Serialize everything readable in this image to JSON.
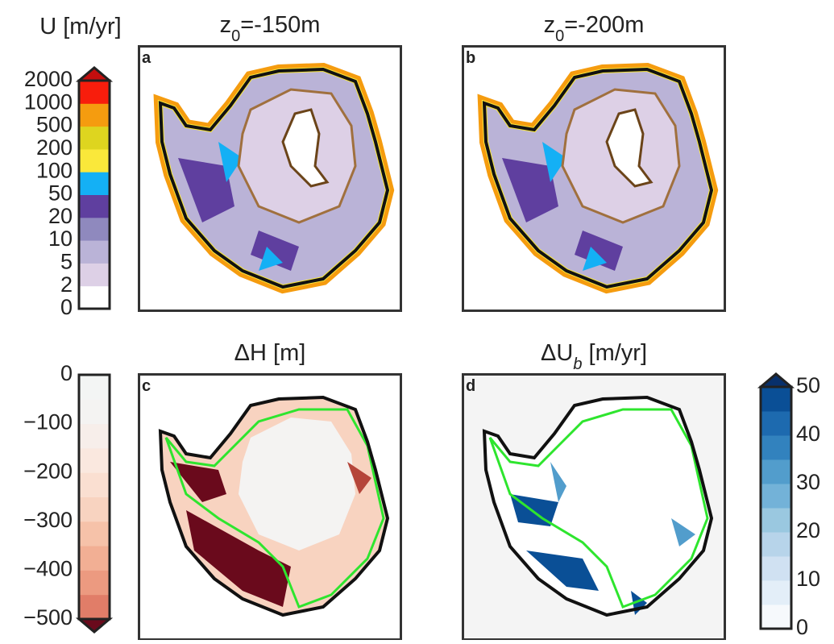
{
  "colorbars": [
    {
      "title": "U [m/yr]",
      "ticks": [
        "0",
        "2",
        "5",
        "10",
        "20",
        "50",
        "100",
        "200",
        "500",
        "1000",
        "2000"
      ],
      "colors": [
        "#ffffff",
        "#ddd0e6",
        "#bab3d7",
        "#8f89be",
        "#5f3f9f",
        "#14b0f5",
        "#fae83a",
        "#ded51f",
        "#f59c0f",
        "#f81d0c"
      ],
      "extend_color": "#c30e0e"
    },
    {
      "ticks": [
        "−500",
        "−400",
        "−300",
        "−200",
        "−100",
        "0"
      ],
      "colors": [
        "#e17d68",
        "#ec9a80",
        "#f2af94",
        "#f6c2a9",
        "#f8d3c0",
        "#fadfd1",
        "#fae8df",
        "#f7eeea",
        "#f4f3f2",
        "#f3f5f4"
      ],
      "extend_color": "#6a0a1c"
    },
    {
      "ticks": [
        "0",
        "10",
        "20",
        "30",
        "40",
        "50"
      ],
      "colors": [
        "#f6f9fc",
        "#e3eef8",
        "#d0e1f2",
        "#b7d4ea",
        "#9ac8e0",
        "#73b2d8",
        "#529dcc",
        "#3282be",
        "#1d6aaf",
        "#0a4f96"
      ],
      "extend_color": "#08306b"
    }
  ],
  "panels": [
    {
      "letter": "a",
      "title": {
        "main": "z",
        "sub": "0",
        "rest": "=-150m"
      }
    },
    {
      "letter": "b",
      "title": {
        "main": "z",
        "sub": "0",
        "rest": "=-200m"
      }
    },
    {
      "letter": "c",
      "title": {
        "main": "ΔH [m]"
      }
    },
    {
      "letter": "d",
      "title": {
        "main": "ΔU",
        "sub": "b",
        "rest": " [m/yr]"
      }
    }
  ]
}
